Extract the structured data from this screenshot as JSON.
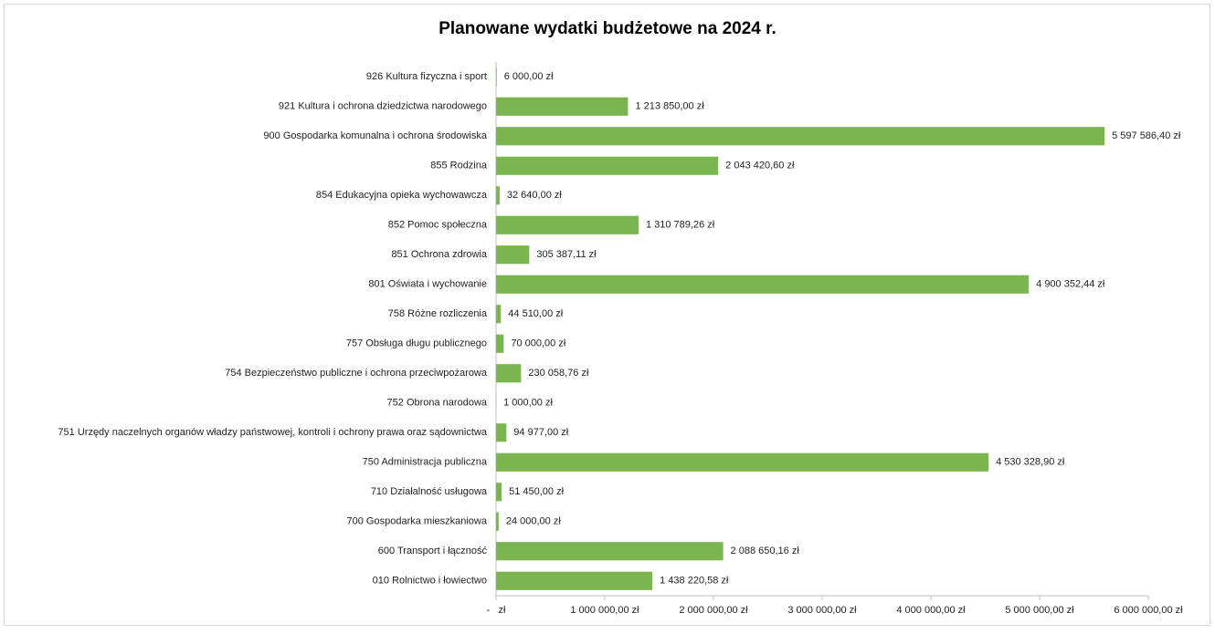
{
  "chart_data": {
    "type": "bar",
    "orientation": "horizontal",
    "title": "Planowane wydatki budżetowe na 2024 r.",
    "categories": [
      "926 Kultura fizyczna i sport",
      "921 Kultura i ochrona dziedzictwa narodowego",
      "900 Gospodarka komunalna i ochrona środowiska",
      "855 Rodzina",
      "854 Edukacyjna opieka wychowawcza",
      "852 Pomoc społeczna",
      "851 Ochrona zdrowia",
      "801 Oświata i wychowanie",
      "758 Różne rozliczenia",
      "757 Obsługa długu publicznego",
      "754 Bezpieczeństwo publiczne i ochrona przeciwpożarowa",
      "752 Obrona narodowa",
      "751 Urzędy naczelnych organów władzy państwowej, kontroli i ochrony prawa oraz sądownictwa",
      "750 Administracja publiczna",
      "710 Działalność usługowa",
      "700 Gospodarka mieszkaniowa",
      "600 Transport i łączność",
      "010 Rolnictwo i łowiectwo"
    ],
    "values": [
      6000,
      1213850,
      5597586.4,
      2043420.6,
      32640,
      1310789.26,
      305387.11,
      4900352.44,
      44510,
      70000,
      230058.76,
      1000,
      94977,
      4530328.9,
      51450,
      24000,
      2088650.16,
      1438220.58
    ],
    "value_labels": [
      "6 000,00 zł",
      "1 213 850,00 zł",
      "5 597 586,40 zł",
      "2 043 420,60 zł",
      "32 640,00 zł",
      "1 310 789,26 zł",
      "305 387,11 zł",
      "4 900 352,44 zł",
      "44 510,00 zł",
      "70 000,00 zł",
      "230 058,76 zł",
      "1 000,00 zł",
      "94 977,00 zł",
      "4 530 328,90 zł",
      "51 450,00 zł",
      "24 000,00 zł",
      "2 088 650,16 zł",
      "1 438 220,58 zł"
    ],
    "color": "#7ab550",
    "xlim": [
      0,
      6000000
    ],
    "xticks": [
      {
        "value": 0,
        "label": "-   zł"
      },
      {
        "value": 1000000,
        "label": "1 000 000,00 zł"
      },
      {
        "value": 2000000,
        "label": "2 000 000,00 zł"
      },
      {
        "value": 3000000,
        "label": "3 000 000,00 zł"
      },
      {
        "value": 4000000,
        "label": "4 000 000,00 zł"
      },
      {
        "value": 5000000,
        "label": "5 000 000,00 zł"
      },
      {
        "value": 6000000,
        "label": "6 000 000,00 zł"
      }
    ],
    "grid": false
  }
}
